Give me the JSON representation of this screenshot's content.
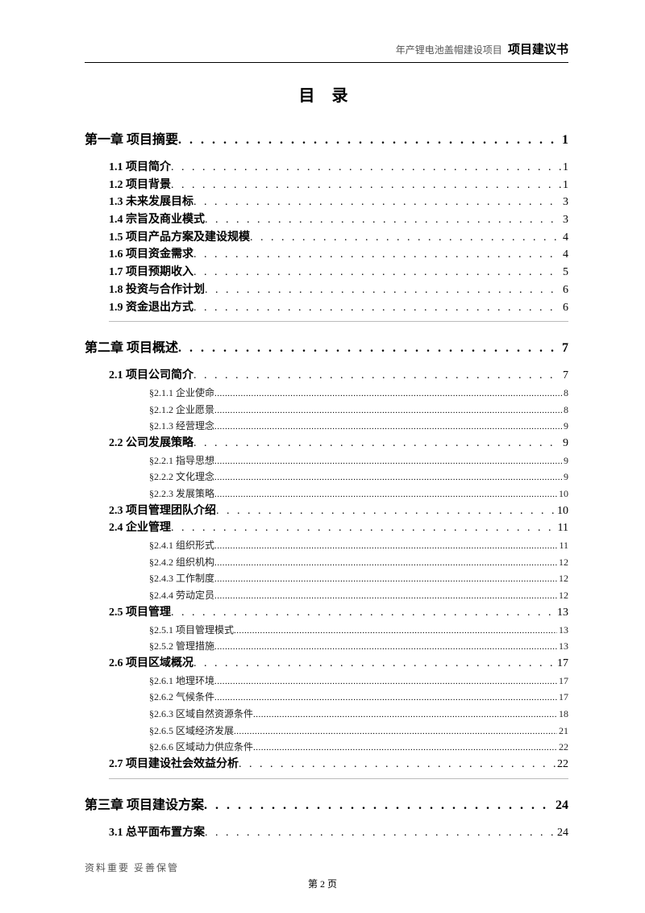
{
  "header": {
    "prefix": "年产锂电池盖帽建设项目",
    "bold": "项目建议书"
  },
  "title": "目 录",
  "footer": {
    "left": "资料重要  妥善保管",
    "center": "第 2 页"
  },
  "toc": [
    {
      "type": "chapter",
      "label": "第一章 项目摘要",
      "page": "1"
    },
    {
      "type": "section",
      "label": "1.1 项目简介",
      "page": "1"
    },
    {
      "type": "section",
      "label": "1.2 项目背景",
      "page": "1"
    },
    {
      "type": "section",
      "label": "1.3 未来发展目标",
      "page": "3"
    },
    {
      "type": "section",
      "label": "1.4 宗旨及商业模式",
      "page": "3"
    },
    {
      "type": "section",
      "label": "1.5 项目产品方案及建设规模",
      "page": "4"
    },
    {
      "type": "section",
      "label": "1.6 项目资金需求",
      "page": "4"
    },
    {
      "type": "section",
      "label": "1.7 项目预期收入",
      "page": "5"
    },
    {
      "type": "section",
      "label": "1.8 投资与合作计划",
      "page": "6"
    },
    {
      "type": "section",
      "label": "1.9 资金退出方式",
      "page": "6"
    },
    {
      "type": "divider"
    },
    {
      "type": "chapter",
      "label": "第二章 项目概述",
      "page": "7"
    },
    {
      "type": "section",
      "label": "2.1 项目公司简介",
      "page": "7"
    },
    {
      "type": "subsection",
      "label": "§2.1.1 企业使命",
      "page": "8"
    },
    {
      "type": "subsection",
      "label": "§2.1.2 企业愿景",
      "page": "8"
    },
    {
      "type": "subsection",
      "label": "§2.1.3 经营理念",
      "page": "9"
    },
    {
      "type": "section",
      "label": "2.2 公司发展策略",
      "page": "9"
    },
    {
      "type": "subsection",
      "label": "§2.2.1 指导思想",
      "page": "9"
    },
    {
      "type": "subsection",
      "label": "§2.2.2 文化理念",
      "page": "9"
    },
    {
      "type": "subsection",
      "label": "§2.2.3 发展策略",
      "page": "10"
    },
    {
      "type": "section",
      "label": "2.3 项目管理团队介绍",
      "page": "10"
    },
    {
      "type": "section",
      "label": "2.4 企业管理",
      "page": "11"
    },
    {
      "type": "subsection",
      "label": "§2.4.1 组织形式",
      "page": "11"
    },
    {
      "type": "subsection",
      "label": "§2.4.2 组织机构",
      "page": "12"
    },
    {
      "type": "subsection",
      "label": "§2.4.3 工作制度",
      "page": "12"
    },
    {
      "type": "subsection",
      "label": "§2.4.4 劳动定员",
      "page": "12"
    },
    {
      "type": "section",
      "label": "2.5 项目管理",
      "page": "13"
    },
    {
      "type": "subsection",
      "label": "§2.5.1 项目管理模式",
      "page": "13"
    },
    {
      "type": "subsection",
      "label": "§2.5.2 管理措施",
      "page": "13"
    },
    {
      "type": "section",
      "label": "2.6 项目区域概况",
      "page": "17"
    },
    {
      "type": "subsection",
      "label": "§2.6.1 地理环境",
      "page": "17"
    },
    {
      "type": "subsection",
      "label": "§2.6.2 气候条件",
      "page": "17"
    },
    {
      "type": "subsection",
      "label": "§2.6.3 区域自然资源条件",
      "page": "18"
    },
    {
      "type": "subsection",
      "label": "§2.6.5 区域经济发展",
      "page": "21"
    },
    {
      "type": "subsection",
      "label": "§2.6.6 区域动力供应条件",
      "page": "22"
    },
    {
      "type": "section",
      "label": "2.7 项目建设社会效益分析",
      "page": "22"
    },
    {
      "type": "divider"
    },
    {
      "type": "chapter",
      "label": "第三章 项目建设方案",
      "page": "24"
    },
    {
      "type": "section",
      "label": "3.1 总平面布置方案",
      "page": "24"
    }
  ]
}
